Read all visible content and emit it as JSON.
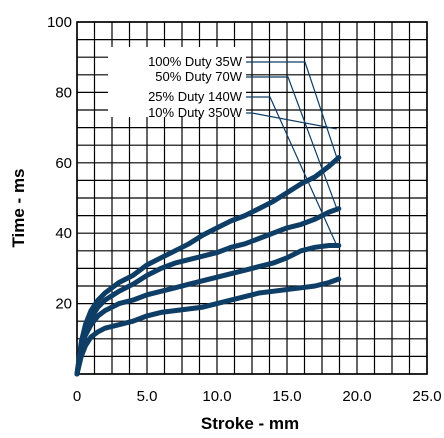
{
  "chart_data": {
    "type": "line",
    "xlabel": "Stroke - mm",
    "ylabel": "Time - ms",
    "xlim": [
      0,
      25
    ],
    "ylim": [
      0,
      100
    ],
    "x_ticks": [
      "0",
      "5.0",
      "10.0",
      "15.0",
      "20.0",
      "25.0"
    ],
    "y_ticks": [
      "20",
      "40",
      "60",
      "80",
      "100"
    ],
    "grid": true,
    "grid_x_step": 1.25,
    "grid_y_step": 5,
    "legend_placement": "top-left (inside plot, with leader lines to curve ends)",
    "line_color": "#0e3d66",
    "series": [
      {
        "name": "100% Duty 35W",
        "x": [
          0,
          0.3,
          0.6,
          1.0,
          1.5,
          2.0,
          3.0,
          4.0,
          5.0,
          6.0,
          7.0,
          8.0,
          9.0,
          10.0,
          11.0,
          12.0,
          13.0,
          14.0,
          15.0,
          16.0,
          17.0,
          18.0,
          18.7
        ],
        "values": [
          0,
          9,
          14,
          18,
          21,
          23,
          26,
          28,
          31,
          33,
          35,
          37,
          39.5,
          41.5,
          43.5,
          45,
          47,
          49,
          51.5,
          54,
          56,
          59,
          61.5
        ]
      },
      {
        "name": "50% Duty 70W",
        "x": [
          0,
          0.3,
          0.6,
          1.0,
          1.5,
          2.0,
          3.0,
          4.0,
          5.0,
          6.0,
          7.0,
          8.0,
          9.0,
          10.0,
          11.0,
          12.0,
          13.0,
          14.0,
          15.0,
          16.0,
          17.0,
          18.0,
          18.7
        ],
        "values": [
          0,
          8,
          12,
          16,
          19,
          21,
          23.5,
          25.5,
          28,
          30,
          31.5,
          32.5,
          33.5,
          34.5,
          36,
          37,
          38.5,
          40,
          41.5,
          42.5,
          44,
          46,
          47
        ]
      },
      {
        "name": "25% Duty 140W",
        "x": [
          0,
          0.3,
          0.6,
          1.0,
          1.5,
          2.0,
          3.0,
          4.0,
          5.0,
          6.0,
          7.0,
          8.0,
          9.0,
          10.0,
          11.0,
          12.0,
          13.0,
          14.0,
          15.0,
          16.0,
          17.0,
          18.0,
          18.7
        ],
        "values": [
          0,
          7,
          11,
          14,
          16.5,
          18,
          20,
          21,
          22.5,
          23.5,
          24.5,
          25.5,
          26.5,
          27.5,
          28.5,
          29.5,
          30.5,
          31.5,
          33,
          35,
          36,
          36.5,
          36.5
        ]
      },
      {
        "name": "10% Duty 350W",
        "x": [
          0,
          0.3,
          0.6,
          1.0,
          1.5,
          2.0,
          3.0,
          4.0,
          5.0,
          6.0,
          7.0,
          8.0,
          9.0,
          10.0,
          11.0,
          12.0,
          13.0,
          14.0,
          15.0,
          16.0,
          17.0,
          18.0,
          18.7
        ],
        "values": [
          0,
          5,
          8,
          10.5,
          12,
          13,
          14,
          15,
          16.5,
          17.5,
          18,
          18.5,
          19,
          20,
          21,
          22,
          23,
          23.5,
          24,
          24.5,
          25,
          26,
          27
        ]
      }
    ]
  }
}
